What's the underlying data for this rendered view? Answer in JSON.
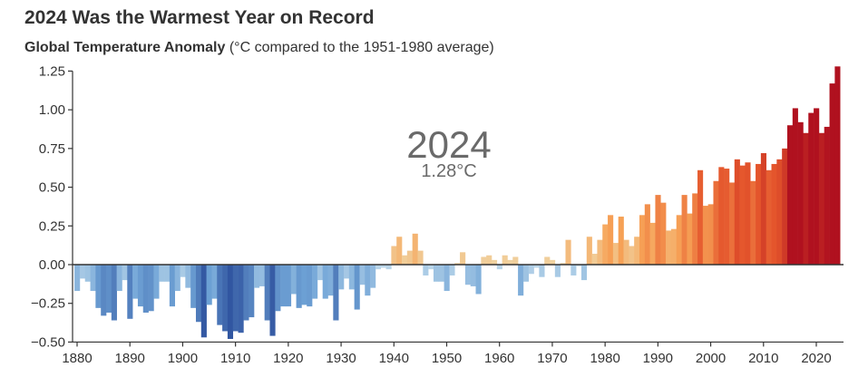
{
  "chart_data": {
    "type": "bar",
    "title": "2024 Was the Warmest Year on Record",
    "subtitle_bold": "Global Temperature Anomaly",
    "subtitle_rest": " (°C compared to the 1951-1980 average)",
    "annotation": {
      "year": "2024",
      "value": "1.28°C"
    },
    "xlabel": "",
    "ylabel": "",
    "xlim": [
      1880,
      2024
    ],
    "ylim": [
      -0.5,
      1.25
    ],
    "yticks": [
      "1.25",
      "1.00",
      "0.75",
      "0.50",
      "0.25",
      "0.00",
      "−0.25",
      "−0.50"
    ],
    "ytick_values": [
      1.25,
      1.0,
      0.75,
      0.5,
      0.25,
      0,
      -0.25,
      -0.5
    ],
    "xticks": [
      "1880",
      "1890",
      "1900",
      "1910",
      "1920",
      "1930",
      "1940",
      "1950",
      "1960",
      "1970",
      "1980",
      "1990",
      "2000",
      "2010",
      "2020"
    ],
    "start_year": 1880,
    "values": [
      -0.17,
      -0.09,
      -0.11,
      -0.17,
      -0.28,
      -0.33,
      -0.31,
      -0.36,
      -0.17,
      -0.1,
      -0.35,
      -0.22,
      -0.27,
      -0.31,
      -0.3,
      -0.22,
      -0.11,
      -0.11,
      -0.27,
      -0.17,
      -0.08,
      -0.15,
      -0.28,
      -0.37,
      -0.47,
      -0.26,
      -0.22,
      -0.39,
      -0.43,
      -0.48,
      -0.43,
      -0.44,
      -0.36,
      -0.34,
      -0.15,
      -0.14,
      -0.36,
      -0.46,
      -0.3,
      -0.27,
      -0.27,
      -0.19,
      -0.28,
      -0.26,
      -0.27,
      -0.22,
      -0.1,
      -0.22,
      -0.2,
      -0.36,
      -0.16,
      -0.09,
      -0.16,
      -0.29,
      -0.13,
      -0.2,
      -0.15,
      -0.03,
      -0.02,
      -0.03,
      0.12,
      0.18,
      0.06,
      0.09,
      0.2,
      0.09,
      -0.07,
      -0.03,
      -0.11,
      -0.11,
      -0.17,
      -0.07,
      0.01,
      0.08,
      -0.13,
      -0.14,
      -0.19,
      0.05,
      0.06,
      0.03,
      -0.03,
      0.06,
      0.03,
      0.05,
      -0.2,
      -0.11,
      -0.06,
      -0.02,
      -0.08,
      0.05,
      0.03,
      -0.08,
      0.01,
      0.16,
      -0.07,
      -0.01,
      -0.1,
      0.18,
      0.07,
      0.16,
      0.26,
      0.32,
      0.14,
      0.31,
      0.16,
      0.12,
      0.18,
      0.32,
      0.39,
      0.27,
      0.45,
      0.4,
      0.22,
      0.23,
      0.32,
      0.45,
      0.33,
      0.46,
      0.61,
      0.38,
      0.39,
      0.54,
      0.63,
      0.62,
      0.53,
      0.68,
      0.64,
      0.66,
      0.54,
      0.65,
      0.72,
      0.61,
      0.65,
      0.68,
      0.75,
      0.9,
      1.01,
      0.92,
      0.85,
      0.98,
      1.01,
      0.85,
      0.89,
      1.17,
      1.28
    ],
    "grid": false,
    "colors": {
      "cold": "#2c4f9c",
      "cool": "#6fa3d6",
      "neutral_cold": "#c3dcec",
      "neutral_warm": "#efd7a8",
      "warm": "#f7a357",
      "hot": "#e4552c",
      "hottest": "#b0111f"
    }
  }
}
